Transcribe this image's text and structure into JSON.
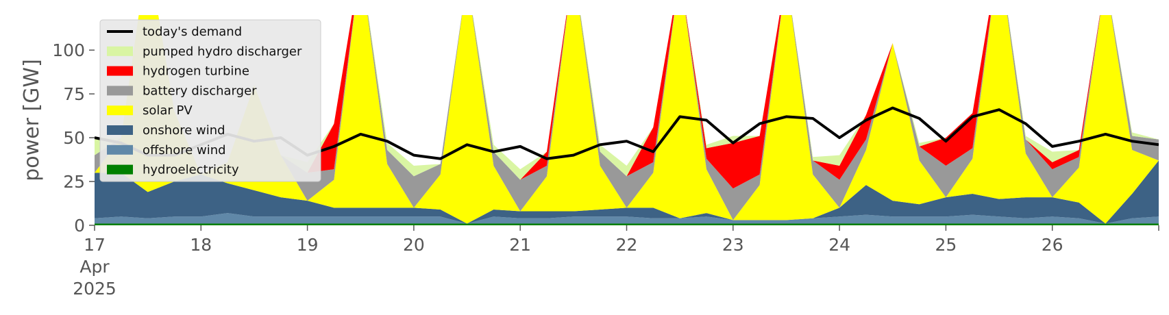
{
  "chart_data": {
    "type": "area",
    "title": "",
    "xlabel": "",
    "ylabel": "power [GW]",
    "ylim": [
      0,
      120
    ],
    "yticks": [
      0,
      25,
      50,
      75,
      100
    ],
    "xlim": [
      "2025-04-17 00:00",
      "2025-04-27 00:00"
    ],
    "x_tick_labels": [
      "17\nApr\n2025",
      "18",
      "19",
      "20",
      "21",
      "22",
      "23",
      "24",
      "25",
      "26"
    ],
    "grid": false,
    "legend_position": "top-left",
    "x": [
      "17 00:00",
      "17 06:00",
      "17 12:00",
      "17 18:00",
      "18 00:00",
      "18 06:00",
      "18 12:00",
      "18 18:00",
      "19 00:00",
      "19 06:00",
      "19 12:00",
      "19 18:00",
      "20 00:00",
      "20 06:00",
      "20 12:00",
      "20 18:00",
      "21 00:00",
      "21 06:00",
      "21 12:00",
      "21 18:00",
      "22 00:00",
      "22 06:00",
      "22 12:00",
      "22 18:00",
      "23 00:00",
      "23 06:00",
      "23 12:00",
      "23 18:00",
      "24 00:00",
      "24 06:00",
      "24 12:00",
      "24 18:00",
      "25 00:00",
      "25 06:00",
      "25 12:00",
      "25 18:00",
      "26 00:00",
      "26 06:00",
      "26 12:00",
      "26 18:00",
      "27 00:00"
    ],
    "series": [
      {
        "name": "hydroelectricity",
        "color": "#008000",
        "values": [
          1,
          1,
          1,
          1,
          1,
          1,
          1,
          1,
          1,
          1,
          1,
          1,
          1,
          1,
          1,
          1,
          1,
          1,
          1,
          1,
          1,
          1,
          1,
          1,
          1,
          1,
          1,
          1,
          1,
          1,
          1,
          1,
          1,
          1,
          1,
          1,
          1,
          1,
          1,
          1,
          1
        ]
      },
      {
        "name": "offshore wind",
        "color": "#6088a8",
        "values": [
          3,
          4,
          3,
          4,
          4,
          6,
          4,
          4,
          4,
          4,
          4,
          4,
          4,
          4,
          0,
          4,
          3,
          3,
          4,
          4,
          4,
          3,
          3,
          4,
          2,
          2,
          2,
          3,
          4,
          5,
          4,
          4,
          4,
          5,
          4,
          3,
          4,
          3,
          0,
          3,
          4
        ]
      },
      {
        "name": "onshore wind",
        "color": "#3d6285",
        "values": [
          26,
          25,
          15,
          20,
          24,
          17,
          15,
          11,
          9,
          5,
          5,
          5,
          5,
          4,
          0,
          4,
          4,
          4,
          3,
          4,
          5,
          6,
          0,
          2,
          0,
          0,
          0,
          0,
          5,
          17,
          9,
          7,
          11,
          12,
          10,
          12,
          11,
          9,
          0,
          14,
          32
        ]
      },
      {
        "name": "solar PV",
        "color": "#ffff00",
        "values": [
          0,
          20,
          140,
          40,
          0,
          12,
          60,
          24,
          0,
          16,
          140,
          25,
          0,
          20,
          140,
          25,
          0,
          20,
          140,
          25,
          0,
          20,
          140,
          25,
          0,
          20,
          140,
          25,
          0,
          20,
          90,
          25,
          0,
          20,
          140,
          25,
          0,
          20,
          140,
          25,
          0
        ]
      },
      {
        "name": "battery discharger",
        "color": "#999999",
        "values": [
          10,
          0,
          0,
          0,
          0,
          0,
          0,
          0,
          16,
          6,
          0,
          8,
          18,
          6,
          0,
          8,
          18,
          6,
          0,
          8,
          18,
          6,
          0,
          6,
          18,
          6,
          0,
          8,
          16,
          6,
          0,
          8,
          18,
          6,
          0,
          8,
          16,
          6,
          0,
          8,
          12
        ]
      },
      {
        "name": "hydrogen turbine",
        "color": "#ff0000",
        "values": [
          0,
          0,
          0,
          0,
          0,
          0,
          0,
          0,
          0,
          26,
          0,
          0,
          0,
          0,
          0,
          0,
          0,
          8,
          0,
          0,
          0,
          20,
          0,
          6,
          26,
          22,
          0,
          0,
          8,
          14,
          0,
          0,
          16,
          20,
          0,
          0,
          4,
          4,
          0,
          0,
          0
        ]
      },
      {
        "name": "pumped hydro discharger",
        "color": "#d9f5a3",
        "values": [
          10,
          0,
          0,
          0,
          0,
          0,
          0,
          0,
          6,
          0,
          0,
          4,
          6,
          0,
          0,
          4,
          6,
          0,
          0,
          4,
          6,
          0,
          0,
          2,
          4,
          0,
          0,
          2,
          6,
          0,
          0,
          2,
          0,
          0,
          0,
          2,
          6,
          0,
          0,
          2,
          0
        ]
      }
    ],
    "demand": {
      "name": "today's demand",
      "color": "#000000",
      "values": [
        50,
        47,
        40,
        40,
        46,
        52,
        48,
        50,
        40,
        45,
        52,
        48,
        40,
        38,
        46,
        42,
        45,
        38,
        40,
        46,
        48,
        42,
        62,
        60,
        47,
        58,
        62,
        61,
        50,
        60,
        67,
        61,
        48,
        62,
        66,
        58,
        45,
        48,
        52,
        48,
        46
      ]
    }
  }
}
